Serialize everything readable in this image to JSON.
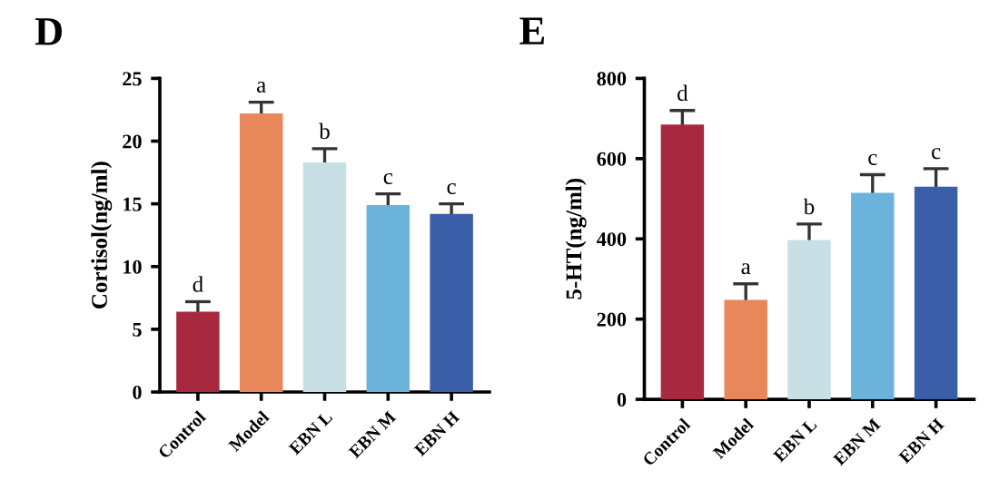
{
  "chart_data": [
    {
      "type": "bar",
      "title": "D",
      "ylabel": "Cortisol(ng/ml)",
      "categories": [
        "Control",
        "Model",
        "EBN L",
        "EBN M",
        "EBN H"
      ],
      "values": [
        6.4,
        22.2,
        18.3,
        14.9,
        14.2
      ],
      "errors": [
        0.8,
        0.9,
        1.1,
        0.9,
        0.8
      ],
      "colors": [
        "#a8283f",
        "#e8875a",
        "#c9dfe6",
        "#6cb3dc",
        "#3a5ea8"
      ],
      "ylim": [
        0,
        25
      ],
      "yticks": [
        0,
        5,
        10,
        15,
        20,
        25
      ],
      "grid": false,
      "legend": false,
      "annotations": [
        {
          "text": "d",
          "x": "Control",
          "y": 7.2
        },
        {
          "text": "a",
          "x": "Model",
          "y": 23.1
        },
        {
          "text": "b",
          "x": "EBN L",
          "y": 19.4
        },
        {
          "text": "c",
          "x": "EBN M",
          "y": 15.8
        },
        {
          "text": "c",
          "x": "EBN H",
          "y": 15.0
        }
      ]
    },
    {
      "type": "bar",
      "title": "E",
      "ylabel": "5-HT(ng/ml)",
      "categories": [
        "Control",
        "Model",
        "EBN L",
        "EBN M",
        "EBN H"
      ],
      "values": [
        685,
        248,
        397,
        515,
        530
      ],
      "errors": [
        35,
        40,
        40,
        45,
        45
      ],
      "colors": [
        "#a8283f",
        "#e8875a",
        "#c9dfe6",
        "#6cb3dc",
        "#3a5ea8"
      ],
      "ylim": [
        0,
        800
      ],
      "yticks": [
        0,
        200,
        400,
        600,
        800
      ],
      "grid": false,
      "legend": false,
      "annotations": [
        {
          "text": "d",
          "x": "Control",
          "y": 720
        },
        {
          "text": "a",
          "x": "Model",
          "y": 288
        },
        {
          "text": "b",
          "x": "EBN L",
          "y": 437
        },
        {
          "text": "c",
          "x": "EBN M",
          "y": 560
        },
        {
          "text": "c",
          "x": "EBN H",
          "y": 575
        }
      ]
    }
  ]
}
